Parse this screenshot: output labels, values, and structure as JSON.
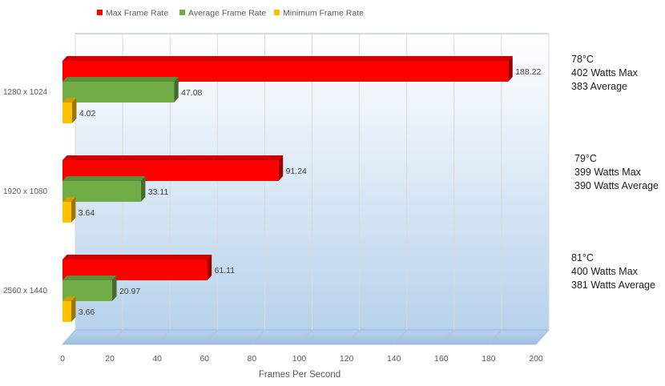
{
  "chart_data": {
    "type": "bar",
    "orientation": "horizontal",
    "title": "",
    "xlabel": "Frames Per Second",
    "ylabel": "",
    "xlim": [
      0,
      200
    ],
    "x_ticks": [
      "0",
      "20",
      "40",
      "60",
      "80",
      "100",
      "120",
      "140",
      "160",
      "180",
      "200"
    ],
    "categories": [
      "1280 x 1024",
      "1920 x 1080",
      "2560 x 1440"
    ],
    "series": [
      {
        "name": "Max Frame Rate",
        "color": "#ff0000",
        "values": [
          188.22,
          91.24,
          61.11
        ]
      },
      {
        "name": "Average Frame Rate",
        "color": "#70ad47",
        "values": [
          47.08,
          33.11,
          20.97
        ]
      },
      {
        "name": "Minimum Frame Rate",
        "color": "#ffc000",
        "values": [
          4.02,
          3.64,
          3.66
        ]
      }
    ],
    "value_labels": [
      [
        "188.22",
        "91.24",
        "61.11"
      ],
      [
        "47.08",
        "33.11",
        "20.97"
      ],
      [
        "4.02",
        "3.64",
        "3.66"
      ]
    ],
    "grid": true,
    "legend_position": "top-left"
  },
  "annotations": [
    {
      "lines": [
        "78°C",
        "402 Watts Max",
        "383 Average"
      ]
    },
    {
      "lines": [
        "79°C",
        "399 Watts Max",
        "390 Watts Average"
      ]
    },
    {
      "lines": [
        "81°C",
        "400 Watts Max",
        "381 Watts Average"
      ]
    }
  ]
}
